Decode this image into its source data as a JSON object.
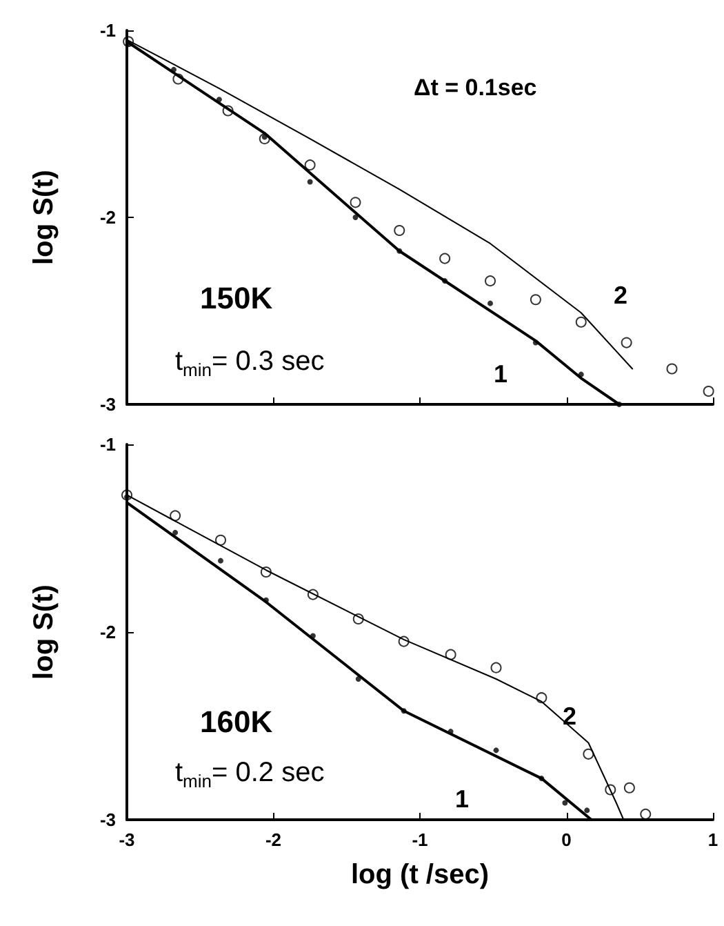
{
  "chart_data": [
    {
      "type": "scatter",
      "ylabel": "log S(t)",
      "xlim": [
        -3,
        1
      ],
      "xticks": [
        -3,
        -2,
        -1,
        0,
        1
      ],
      "ylim": [
        -3,
        -1
      ],
      "yticks": [
        -3,
        -2,
        -1
      ],
      "tick_labels": "y",
      "grid": false,
      "marker": "circle",
      "annotations": [
        "Δt = 0.1sec",
        "150K",
        "t$_{min}$= 0.3 sec",
        "2",
        "1"
      ],
      "series": [
        {
          "color": "#000000",
          "x": [
            -2.99,
            -2.68,
            -2.37,
            -2.06,
            -1.75,
            -1.44,
            -1.14,
            -0.83,
            -0.52,
            -0.21,
            0.1,
            0.36
          ],
          "values": [
            -1.07,
            -1.21,
            -1.37,
            -1.57,
            -1.81,
            -2.0,
            -2.18,
            -2.34,
            -2.46,
            -2.67,
            -2.84,
            -3.0
          ]
        },
        {
          "color": "#000000",
          "x": [
            -2.99,
            -2.65,
            -2.31,
            -2.06,
            -1.75,
            -1.44,
            -1.14,
            -0.83,
            -0.52,
            -0.21,
            0.1,
            0.41,
            0.72,
            0.97
          ],
          "values": [
            -1.06,
            -1.26,
            -1.43,
            -1.58,
            -1.72,
            -1.92,
            -2.07,
            -2.22,
            -2.34,
            -2.44,
            -2.56,
            -2.67,
            -2.81,
            -2.93
          ]
        },
        {
          "type": "line",
          "color": "#000000",
          "marker": "none",
          "line_style": "solid",
          "x": [
            -3.0,
            -2.06,
            -1.14,
            -0.21,
            0.1,
            0.36
          ],
          "values": [
            -1.06,
            -1.55,
            -2.18,
            -2.66,
            -2.86,
            -3.0
          ]
        },
        {
          "type": "line",
          "color": "#000000",
          "marker": "none",
          "line_style": "solid",
          "x": [
            -3.0,
            -2.37,
            -1.75,
            -1.14,
            -0.52,
            0.1,
            0.45
          ],
          "values": [
            -1.05,
            -1.31,
            -1.58,
            -1.85,
            -2.14,
            -2.51,
            -2.81
          ]
        }
      ]
    },
    {
      "type": "scatter",
      "xlabel": "log (t /sec)",
      "ylabel": "log S(t)",
      "xlim": [
        -3,
        1
      ],
      "xticks": [
        -3,
        -2,
        -1,
        0,
        1
      ],
      "ylim": [
        -3,
        -1
      ],
      "yticks": [
        -3,
        -2,
        -1
      ],
      "grid": false,
      "marker": "circle",
      "annotations": [
        "160K",
        "t$_{min}$= 0.2 sec",
        "2",
        "1"
      ],
      "series": [
        {
          "color": "#000000",
          "x": [
            -3.0,
            -2.67,
            -2.36,
            -2.05,
            -1.73,
            -1.42,
            -1.11,
            -0.79,
            -0.48,
            -0.17,
            -0.01,
            0.14
          ],
          "values": [
            -1.28,
            -1.47,
            -1.62,
            -1.83,
            -2.02,
            -2.25,
            -2.42,
            -2.53,
            -2.63,
            -2.78,
            -2.91,
            -2.95
          ]
        },
        {
          "color": "#000000",
          "x": [
            -3.0,
            -2.67,
            -2.36,
            -2.05,
            -1.73,
            -1.42,
            -1.11,
            -0.79,
            -0.48,
            -0.17,
            0.15,
            0.3,
            0.43,
            0.54
          ],
          "values": [
            -1.27,
            -1.38,
            -1.51,
            -1.68,
            -1.8,
            -1.93,
            -2.05,
            -2.12,
            -2.19,
            -2.35,
            -2.65,
            -2.84,
            -2.83,
            -2.97
          ]
        },
        {
          "type": "line",
          "color": "#000000",
          "marker": "none",
          "line_style": "solid",
          "x": [
            -3.0,
            -2.05,
            -1.11,
            -0.17,
            0.17
          ],
          "values": [
            -1.31,
            -1.84,
            -2.42,
            -2.78,
            -3.0
          ]
        },
        {
          "type": "line",
          "color": "#000000",
          "marker": "none",
          "line_style": "solid",
          "x": [
            -3.0,
            -2.05,
            -1.11,
            -0.48,
            -0.17,
            0.15,
            0.34,
            0.39
          ],
          "values": [
            -1.27,
            -1.67,
            -2.04,
            -2.25,
            -2.37,
            -2.59,
            -2.91,
            -3.0
          ]
        }
      ]
    }
  ]
}
